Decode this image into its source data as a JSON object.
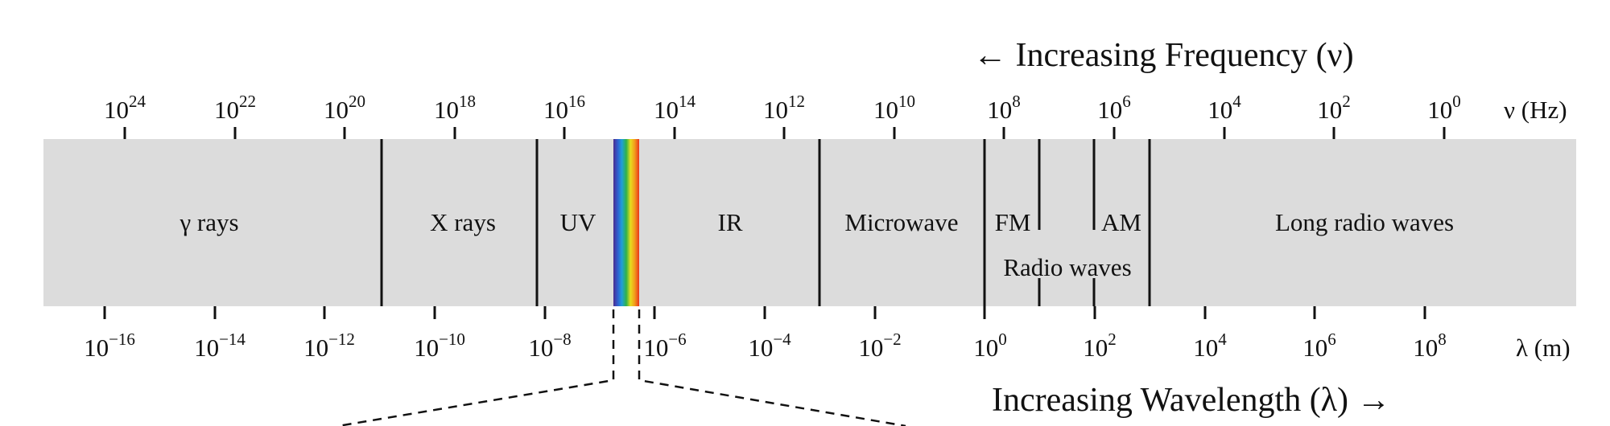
{
  "headings": {
    "frequency": "← Increasing Frequency (ν)",
    "wavelength": "Increasing Wavelength (λ) →"
  },
  "frequency_axis": {
    "unit": "ν (Hz)",
    "ticks": [
      {
        "base": "10",
        "exp": "24"
      },
      {
        "base": "10",
        "exp": "22"
      },
      {
        "base": "10",
        "exp": "20"
      },
      {
        "base": "10",
        "exp": "18"
      },
      {
        "base": "10",
        "exp": "16"
      },
      {
        "base": "10",
        "exp": "14"
      },
      {
        "base": "10",
        "exp": "12"
      },
      {
        "base": "10",
        "exp": "10"
      },
      {
        "base": "10",
        "exp": "8"
      },
      {
        "base": "10",
        "exp": "6"
      },
      {
        "base": "10",
        "exp": "4"
      },
      {
        "base": "10",
        "exp": "2"
      },
      {
        "base": "10",
        "exp": "0"
      }
    ]
  },
  "wavelength_axis": {
    "unit": "λ (m)",
    "ticks": [
      {
        "base": "10",
        "exp": "−16"
      },
      {
        "base": "10",
        "exp": "−14"
      },
      {
        "base": "10",
        "exp": "−12"
      },
      {
        "base": "10",
        "exp": "−10"
      },
      {
        "base": "10",
        "exp": "−8"
      },
      {
        "base": "10",
        "exp": "−6"
      },
      {
        "base": "10",
        "exp": "−4"
      },
      {
        "base": "10",
        "exp": "−2"
      },
      {
        "base": "10",
        "exp": "0"
      },
      {
        "base": "10",
        "exp": "2"
      },
      {
        "base": "10",
        "exp": "4"
      },
      {
        "base": "10",
        "exp": "6"
      },
      {
        "base": "10",
        "exp": "8"
      }
    ]
  },
  "bands": {
    "gamma": "γ rays",
    "xray": "X rays",
    "uv": "UV",
    "ir": "IR",
    "microwave": "Microwave",
    "fm": "FM",
    "am": "AM",
    "long_radio": "Long radio waves",
    "radio": "Radio waves"
  },
  "colors": {
    "band_fill": "#dcdcdc",
    "divider": "#111111",
    "visible_spectrum": [
      "#4b2c8f",
      "#2f5fd0",
      "#1fa0d8",
      "#2fb24a",
      "#e6dd1e",
      "#f39a1c",
      "#e8341c"
    ]
  }
}
